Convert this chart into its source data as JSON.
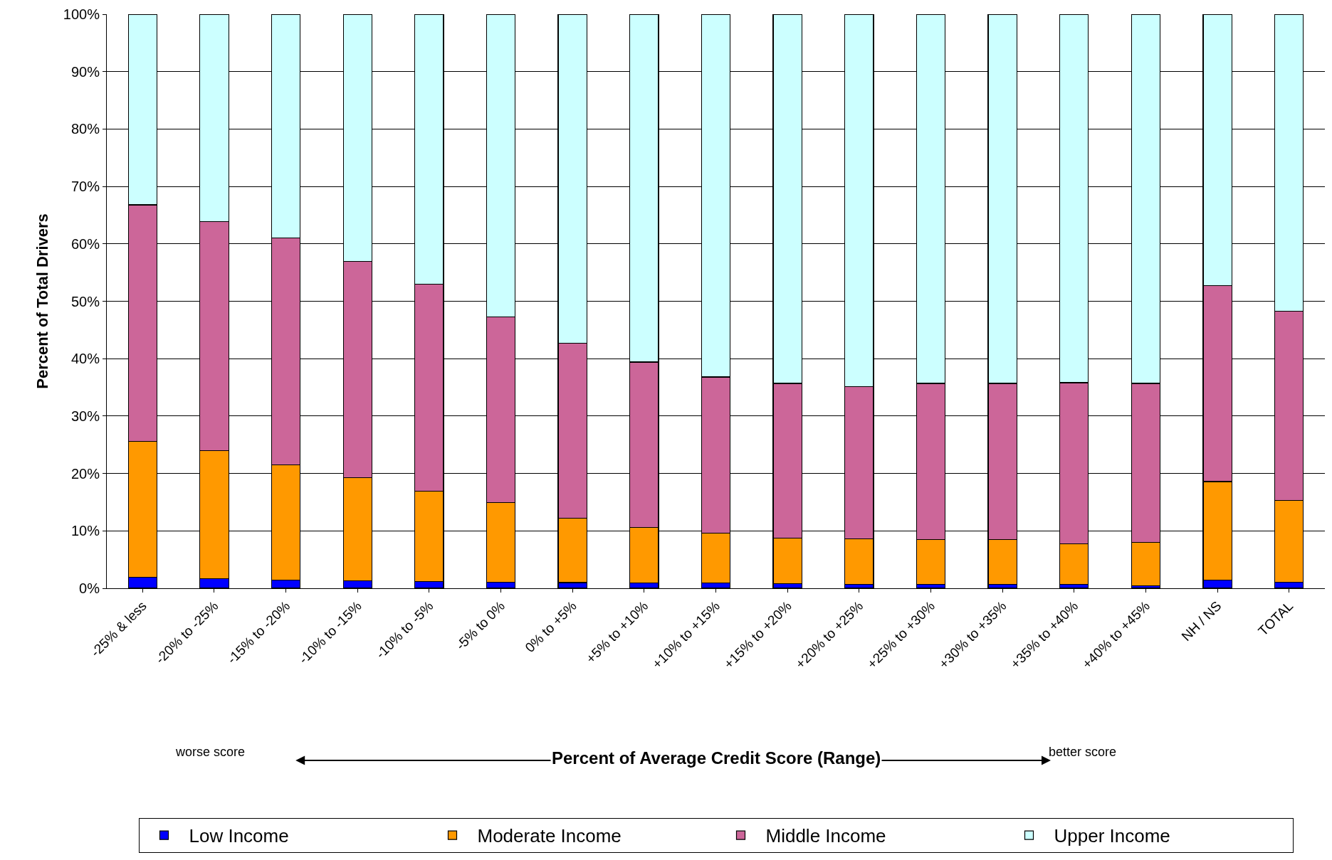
{
  "chart_data": {
    "type": "bar",
    "stacked": true,
    "xlabel": "Percent of Average Credit Score (Range)",
    "ylabel": "Percent of Total Drivers",
    "categories": [
      "-25% & less",
      "-20% to -25%",
      "-15% to -20%",
      "-10% to -15%",
      "-10% to -5%",
      "-5% to 0%",
      "0% to +5%",
      "+5% to +10%",
      "+10% to +15%",
      "+15% to +20%",
      "+20% to +25%",
      "+25% to +30%",
      "+30% to +35%",
      "+35% to +40%",
      "+40% to +45%",
      "NH / NS",
      "TOTAL"
    ],
    "series": [
      {
        "name": "Low Income",
        "color": "#0000ff",
        "values": [
          1.9,
          1.7,
          1.4,
          1.3,
          1.2,
          1.1,
          1.0,
          0.9,
          0.9,
          0.8,
          0.7,
          0.7,
          0.7,
          0.7,
          0.4,
          1.4,
          1.1
        ]
      },
      {
        "name": "Moderate Income",
        "color": "#ff9900",
        "values": [
          23.7,
          22.3,
          20.1,
          18.0,
          15.7,
          13.8,
          11.2,
          9.7,
          8.7,
          7.9,
          7.9,
          7.8,
          7.8,
          7.0,
          7.6,
          17.2,
          14.2
        ]
      },
      {
        "name": "Middle Income",
        "color": "#cc6699",
        "values": [
          41.2,
          39.9,
          39.5,
          37.6,
          36.1,
          32.4,
          30.5,
          28.8,
          27.2,
          27.0,
          26.5,
          27.2,
          27.2,
          28.1,
          27.7,
          34.1,
          33.0
        ]
      },
      {
        "name": "Upper Income",
        "color": "#ccffff",
        "values": [
          33.2,
          36.1,
          39.0,
          43.1,
          47.0,
          52.7,
          57.3,
          60.6,
          63.2,
          64.3,
          64.9,
          64.3,
          64.3,
          64.2,
          64.3,
          47.3,
          51.7
        ]
      }
    ],
    "ylim": [
      0,
      100
    ],
    "yticks": [
      {
        "value": 0,
        "label": "0%"
      },
      {
        "value": 10,
        "label": "10%"
      },
      {
        "value": 20,
        "label": "20%"
      },
      {
        "value": 30,
        "label": "30%"
      },
      {
        "value": 40,
        "label": "40%"
      },
      {
        "value": 50,
        "label": "50%"
      },
      {
        "value": 60,
        "label": "60%"
      },
      {
        "value": 70,
        "label": "70%"
      },
      {
        "value": 80,
        "label": "80%"
      },
      {
        "value": 90,
        "label": "90%"
      },
      {
        "value": 100,
        "label": "100%"
      }
    ],
    "grid": "y",
    "legend": "bottom",
    "annotations": [
      "worse score",
      "better score"
    ]
  }
}
